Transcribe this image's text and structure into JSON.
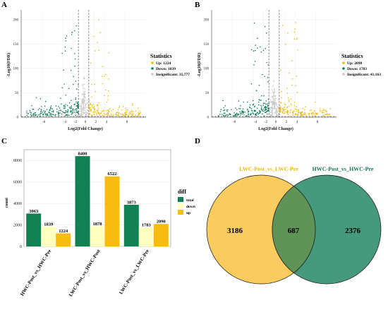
{
  "panels": {
    "a": "A",
    "b": "B",
    "c": "C",
    "d": "D"
  },
  "volcano_plots": [
    {
      "panel": "A",
      "ylabel": "-Log10(FDR)",
      "xlabel": "Log2(Fold Change)",
      "y_ticks": [
        "0",
        "50",
        "100",
        "150",
        "200"
      ],
      "x_ticks": [
        "-8",
        "-4",
        "-2",
        "0",
        "2",
        "4",
        "8"
      ],
      "legend_title": "Statistics",
      "legend_items": [
        {
          "label": "Up: 1224",
          "color": "#f2b90c"
        },
        {
          "label": "Down: 1839",
          "color": "#0f7f5a"
        },
        {
          "label": "Insignificant: 35,777",
          "color": "#c8c8c8"
        }
      ]
    },
    {
      "panel": "B",
      "ylabel": "-Log10(FDR)",
      "xlabel": "Log2(Fold Change)",
      "y_ticks": [
        "0",
        "50",
        "100",
        "150",
        "200"
      ],
      "x_ticks": [
        "-8",
        "-4",
        "-2",
        "0",
        "2",
        "4",
        "8"
      ],
      "legend_title": "Statistics",
      "legend_items": [
        {
          "label": "Up: 2090",
          "color": "#f2b90c"
        },
        {
          "label": "Down: 1783",
          "color": "#0f7f5a"
        },
        {
          "label": "Insignificant: 41,163",
          "color": "#c8c8c8"
        }
      ]
    }
  ],
  "chart_data": [
    {
      "type": "scatter",
      "panel": "A",
      "title": "",
      "xlabel": "Log2(Fold Change)",
      "ylabel": "-Log10(FDR)",
      "xlim": [
        -12,
        12
      ],
      "ylim": [
        0,
        220
      ],
      "thresholds": {
        "log2fc": [
          -1,
          1
        ],
        "neg_log10_fdr": 1.3
      },
      "series": [
        {
          "name": "Up: 1224",
          "color": "#f2b90c",
          "count": 1224
        },
        {
          "name": "Down: 1839",
          "color": "#0f7f5a",
          "count": 1839
        },
        {
          "name": "Insignificant: 35,777",
          "color": "#c8c8c8",
          "count": 35777
        }
      ]
    },
    {
      "type": "scatter",
      "panel": "B",
      "title": "",
      "xlabel": "Log2(Fold Change)",
      "ylabel": "-Log10(FDR)",
      "xlim": [
        -12,
        12
      ],
      "ylim": [
        0,
        220
      ],
      "thresholds": {
        "log2fc": [
          -1,
          1
        ],
        "neg_log10_fdr": 1.3
      },
      "series": [
        {
          "name": "Up: 2090",
          "color": "#f2b90c",
          "count": 2090
        },
        {
          "name": "Down: 1783",
          "color": "#0f7f5a",
          "count": 1783
        },
        {
          "name": "Insignificant: 41,163",
          "color": "#c8c8c8",
          "count": 41163
        }
      ]
    },
    {
      "type": "bar",
      "panel": "C",
      "title": "",
      "xlabel": "",
      "ylabel": "count",
      "ylim": [
        0,
        9000
      ],
      "y_ticks": [
        0,
        2000,
        4000,
        6000,
        8000
      ],
      "categories": [
        "HWC-Post_vs_HWC-Pre",
        "LWC-Post_vs_HWC-Post",
        "LWC-Post_vs_LWC-Pre"
      ],
      "legend_title": "diff",
      "legend_position": "right",
      "series": [
        {
          "name": "total",
          "color": "#118055",
          "values": [
            3063,
            8400,
            3873
          ]
        },
        {
          "name": "down",
          "color": "#ffffc0",
          "values": [
            1839,
            1878,
            1783
          ]
        },
        {
          "name": "up",
          "color": "#f7bb12",
          "values": [
            1224,
            6522,
            2090
          ]
        }
      ]
    },
    {
      "type": "venn",
      "panel": "D",
      "sets": [
        {
          "name": "LWC-Post_vs_LWC-Pre",
          "color": "#f9c64e",
          "only": 3186
        },
        {
          "name": "HWC-Post_vs_HWC-Pre",
          "color": "#2e8b6b",
          "only": 2376
        }
      ],
      "intersection": 687
    }
  ]
}
